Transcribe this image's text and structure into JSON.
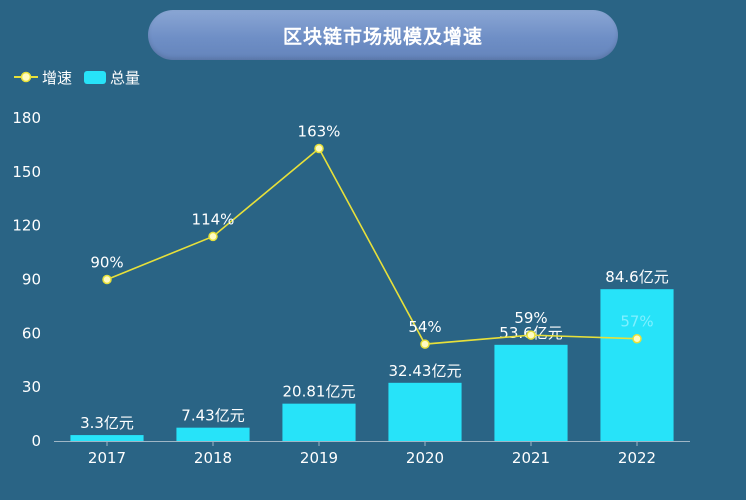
{
  "title": "区块链市场规模及增速",
  "legend": {
    "growth_label": "增速",
    "total_label": "总量"
  },
  "colors": {
    "background": "#2a6485",
    "bar": "#27e3f9",
    "line": "#e7e03a",
    "marker_fill": "#fffbc2"
  },
  "chart_data": {
    "type": "bar",
    "title": "区块链市场规模及增速",
    "categories": [
      "2017",
      "2018",
      "2019",
      "2020",
      "2021",
      "2022"
    ],
    "ylim": [
      0,
      180
    ],
    "yticks": [
      "0",
      "30",
      "60",
      "90",
      "120",
      "150",
      "180"
    ],
    "legend_position": "top-left",
    "grid": false,
    "series": [
      {
        "name": "总量",
        "type": "bar",
        "values": [
          3.3,
          7.43,
          20.81,
          32.43,
          53.6,
          84.6
        ],
        "labels": [
          "3.3亿元",
          "7.43亿元",
          "20.81亿元",
          "32.43亿元",
          "53.6亿元",
          "84.6亿元"
        ]
      },
      {
        "name": "增速",
        "type": "line",
        "values": [
          90,
          114,
          163,
          54,
          59,
          57
        ],
        "labels": [
          "90%",
          "114%",
          "163%",
          "54%",
          "59%",
          "57%"
        ]
      }
    ]
  }
}
